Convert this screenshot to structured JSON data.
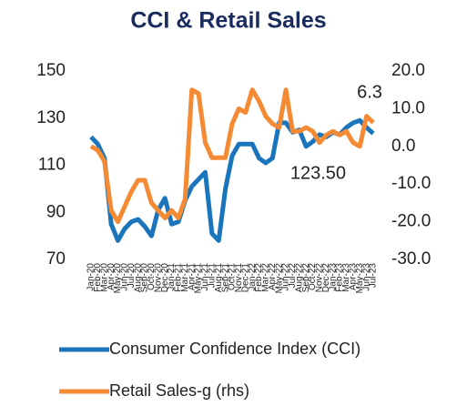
{
  "chart_data": {
    "type": "line",
    "title": "CCI & Retail Sales",
    "categories": [
      "Jan-20",
      "Feb-20",
      "Mar-20",
      "Apr-20",
      "May-20",
      "Jun-20",
      "Jul-20",
      "Aug-20",
      "Sep-20",
      "Oct-20",
      "Nov-20",
      "Dec-20",
      "Jan-21",
      "Feb-21",
      "Mar-21",
      "Apr-21",
      "May-21",
      "Jun-21",
      "Jul-21",
      "Aug-21",
      "Sep-21",
      "Oct-21",
      "Nov-21",
      "Dec-21",
      "Jan-22",
      "Feb-22",
      "Mar-22",
      "Apr-22",
      "May-22",
      "Jun-22",
      "Jul-22",
      "Aug-22",
      "Sep-22",
      "Oct-22",
      "Nov-22",
      "Dec-22",
      "Jan-23",
      "Feb-23",
      "Mar-23",
      "Apr-23",
      "May-23",
      "Jun-23",
      "Jul-23"
    ],
    "series": [
      {
        "name": "Consumer Confidence Index (CCI)",
        "color": "#1b75bc",
        "value_labels": [
          null,
          null,
          null,
          null,
          null,
          null,
          null,
          null,
          null,
          null,
          null,
          null,
          null,
          null,
          null,
          null,
          null,
          null,
          null,
          null,
          null,
          null,
          null,
          null,
          null,
          null,
          null,
          null,
          null,
          null,
          null,
          null,
          null,
          null,
          null,
          null,
          null,
          null,
          null,
          null,
          null,
          null,
          "123.50"
        ],
        "values": [
          122,
          119,
          113,
          85,
          78,
          83,
          86,
          87,
          84,
          80,
          91,
          96,
          85,
          86,
          95,
          101,
          104,
          107,
          81,
          78,
          100,
          114,
          119,
          119,
          119,
          113,
          111,
          113,
          128,
          128,
          124,
          125,
          118,
          120,
          123,
          122,
          124,
          123,
          126,
          128,
          129,
          126,
          123.5
        ]
      },
      {
        "name": "Retail Sales-g (rhs)",
        "color": "#f58a34",
        "axis": "y2",
        "value_labels": [
          null,
          null,
          null,
          null,
          null,
          null,
          null,
          null,
          null,
          null,
          null,
          null,
          null,
          null,
          null,
          null,
          null,
          null,
          null,
          null,
          null,
          null,
          null,
          null,
          null,
          null,
          null,
          null,
          null,
          null,
          null,
          null,
          null,
          null,
          null,
          null,
          null,
          null,
          null,
          null,
          null,
          null,
          "6.3"
        ],
        "values": [
          0,
          -1,
          -4,
          -17,
          -20,
          -16,
          -12,
          -9,
          -9,
          -15,
          -17,
          -19,
          -17,
          -19,
          -14,
          15,
          14,
          1,
          -3,
          -3,
          -3,
          6,
          10,
          9,
          15,
          12,
          8,
          6,
          5,
          15,
          4,
          4,
          5,
          4,
          1,
          3,
          4,
          3,
          4,
          1,
          0,
          8,
          6.3
        ]
      }
    ],
    "ylim": [
      70,
      150
    ],
    "yticks": [
      70,
      90,
      110,
      130,
      150
    ],
    "y2lim": [
      -30,
      20
    ],
    "y2ticks": [
      {
        "value": -30,
        "label": "-30.0"
      },
      {
        "value": -20,
        "label": "-20.0"
      },
      {
        "value": -10,
        "label": "-10.0"
      },
      {
        "value": 0,
        "label": "0.0"
      },
      {
        "value": 10,
        "label": "10.0"
      },
      {
        "value": 20,
        "label": "20.0"
      }
    ],
    "legend": "bottom"
  }
}
